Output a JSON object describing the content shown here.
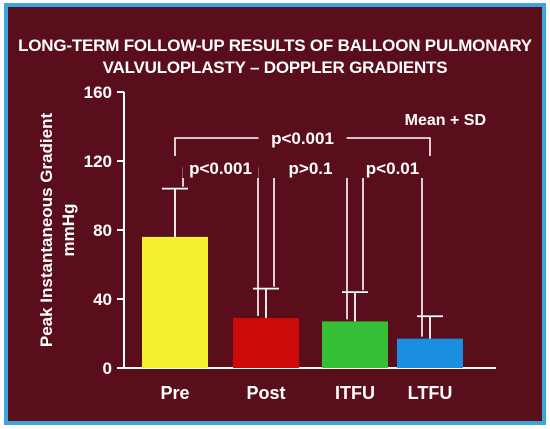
{
  "chart_data": {
    "type": "bar",
    "title_lines": [
      "LONG-TERM FOLLOW-UP RESULTS OF BALLOON PULMONARY",
      "VALVULOPLASTY – DOPPLER GRADIENTS"
    ],
    "ylabel_lines": [
      "Peak Instantaneous Gradient",
      "mmHg"
    ],
    "legend_note": "Mean + SD",
    "categories": [
      "Pre",
      "Post",
      "ITFU",
      "LTFU"
    ],
    "values": [
      76,
      29,
      27,
      17
    ],
    "sd_upper": [
      104,
      46,
      44,
      30
    ],
    "bar_colors": [
      "#f5f032",
      "#cc0a0a",
      "#36c038",
      "#1a8fe0"
    ],
    "ylim": [
      0,
      160
    ],
    "yticks": [
      0,
      40,
      80,
      120,
      160
    ],
    "comparisons": [
      {
        "label": "p<0.001",
        "from": 0,
        "to": 3,
        "level": "top"
      },
      {
        "label": "p<0.001",
        "from": 0,
        "to": 1,
        "level": "pair"
      },
      {
        "label": "p>0.1",
        "from": 1,
        "to": 2,
        "level": "pair"
      },
      {
        "label": "p<0.01",
        "from": 2,
        "to": 3,
        "level": "pair"
      }
    ],
    "grid": false
  },
  "colors": {
    "background": "#5a0e1c",
    "border": "#3aa6dd",
    "text": "#ffffff"
  }
}
